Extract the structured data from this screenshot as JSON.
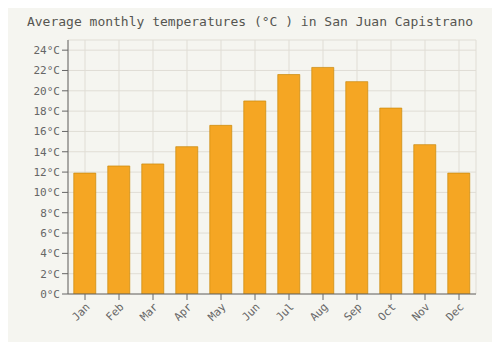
{
  "chart_data": {
    "type": "bar",
    "title": "Average monthly temperatures (°C ) in San Juan Capistrano",
    "categories": [
      "Jan",
      "Feb",
      "Mar",
      "Apr",
      "May",
      "Jun",
      "Jul",
      "Aug",
      "Sep",
      "Oct",
      "Nov",
      "Dec"
    ],
    "values": [
      11.9,
      12.6,
      12.8,
      14.5,
      16.6,
      19.0,
      21.6,
      22.3,
      20.9,
      18.3,
      14.7,
      11.9
    ],
    "color": "#F5A623",
    "ylim": [
      0,
      25
    ],
    "yticks": [
      {
        "value": 0,
        "label": "0°C"
      },
      {
        "value": 2,
        "label": "2°C"
      },
      {
        "value": 4,
        "label": "4°C"
      },
      {
        "value": 6,
        "label": "6°C"
      },
      {
        "value": 8,
        "label": "8°C"
      },
      {
        "value": 10,
        "label": "10°C"
      },
      {
        "value": 12,
        "label": "12°C"
      },
      {
        "value": 14,
        "label": "14°C"
      },
      {
        "value": 16,
        "label": "16°C"
      },
      {
        "value": 18,
        "label": "18°C"
      },
      {
        "value": 20,
        "label": "20°C"
      },
      {
        "value": 22,
        "label": "22°C"
      },
      {
        "value": 24,
        "label": "24°C"
      }
    ],
    "grid": true
  }
}
